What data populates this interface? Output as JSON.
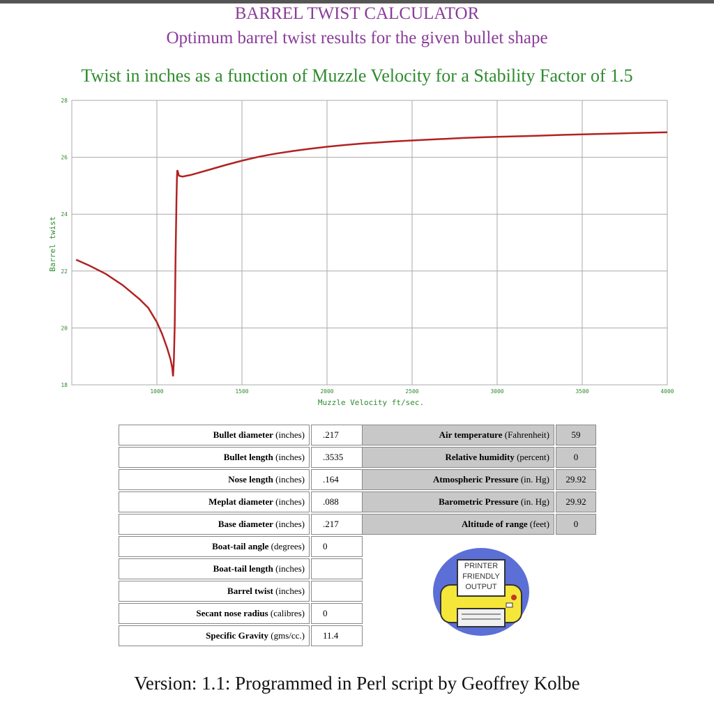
{
  "header": {
    "title": "BARREL TWIST CALCULATOR",
    "subtitle": "Optimum barrel twist results for the given bullet shape"
  },
  "colors": {
    "title": "#8a3c9a",
    "chart_title": "#2e8b2e",
    "curve": "#b22222",
    "axis_text": "#2e8b2e",
    "grid": "#aaaaaa"
  },
  "chart_data": {
    "type": "line",
    "title": "Twist in inches as a function of Muzzle Velocity for a Stability Factor of 1.5",
    "xlabel": "Muzzle Velocity ft/sec.",
    "ylabel": "Barrel twist",
    "xlim": [
      500,
      4000
    ],
    "ylim": [
      18,
      28
    ],
    "xticks": [
      1000,
      1500,
      2000,
      2500,
      3000,
      3500,
      4000
    ],
    "yticks": [
      18,
      20,
      22,
      24,
      26,
      28
    ],
    "grid": true,
    "legend": "none",
    "series": [
      {
        "x": [
          525,
          600,
          700,
          800,
          900,
          950,
          1000,
          1030,
          1060,
          1080,
          1090,
          1095,
          1100,
          1105,
          1110,
          1115,
          1118,
          1120,
          1125,
          1130,
          1150,
          1200,
          1300,
          1400,
          1500,
          1600,
          1700,
          1800,
          1900,
          2000,
          2100,
          2200,
          2300,
          2400,
          2500,
          2600,
          2700,
          2800,
          2900,
          3000,
          3200,
          3400,
          3600,
          3800,
          4000
        ],
        "y": [
          22.4,
          22.2,
          21.9,
          21.5,
          21.0,
          20.7,
          20.2,
          19.8,
          19.3,
          18.9,
          18.6,
          18.3,
          18.9,
          20.1,
          22.5,
          24.5,
          25.3,
          25.55,
          25.45,
          25.35,
          25.32,
          25.38,
          25.55,
          25.72,
          25.88,
          26.02,
          26.13,
          26.22,
          26.3,
          26.37,
          26.43,
          26.48,
          26.52,
          26.56,
          26.59,
          26.62,
          26.65,
          26.68,
          26.7,
          26.72,
          26.75,
          26.79,
          26.82,
          26.85,
          26.88
        ]
      }
    ]
  },
  "bullet_params": [
    {
      "label": "Bullet diameter",
      "unit": "(inches)",
      "value": ".217"
    },
    {
      "label": "Bullet length",
      "unit": "(inches)",
      "value": ".3535"
    },
    {
      "label": "Nose length",
      "unit": "(inches)",
      "value": ".164"
    },
    {
      "label": "Meplat diameter",
      "unit": "(inches)",
      "value": ".088"
    },
    {
      "label": "Base diameter",
      "unit": "(inches)",
      "value": ".217"
    },
    {
      "label": "Boat-tail angle",
      "unit": "(degrees)",
      "value": "0"
    },
    {
      "label": "Boat-tail length",
      "unit": "(inches)",
      "value": ""
    },
    {
      "label": "Barrel twist",
      "unit": "(inches)",
      "value": ""
    },
    {
      "label": "Secant nose radius",
      "unit": "(calibres)",
      "value": "0"
    },
    {
      "label": "Specific Gravity",
      "unit": "(gms/cc.)",
      "value": "11.4"
    }
  ],
  "atmosphere_params": [
    {
      "label": "Air temperature",
      "unit": "(Fahrenheit)",
      "value": "59"
    },
    {
      "label": "Relative humidity",
      "unit": "(percent)",
      "value": "0"
    },
    {
      "label": "Atmospheric Pressure",
      "unit": "(in. Hg)",
      "value": "29.92"
    },
    {
      "label": "Barometric Pressure",
      "unit": "(in. Hg)",
      "value": "29.92"
    },
    {
      "label": "Altitude of range",
      "unit": "(feet)",
      "value": "0"
    }
  ],
  "printer_button": {
    "icon": "printer-icon",
    "lines": [
      "PRINTER",
      "FRIENDLY",
      "OUTPUT"
    ]
  },
  "footer": "Version: 1.1: Programmed in Perl script by Geoffrey Kolbe"
}
